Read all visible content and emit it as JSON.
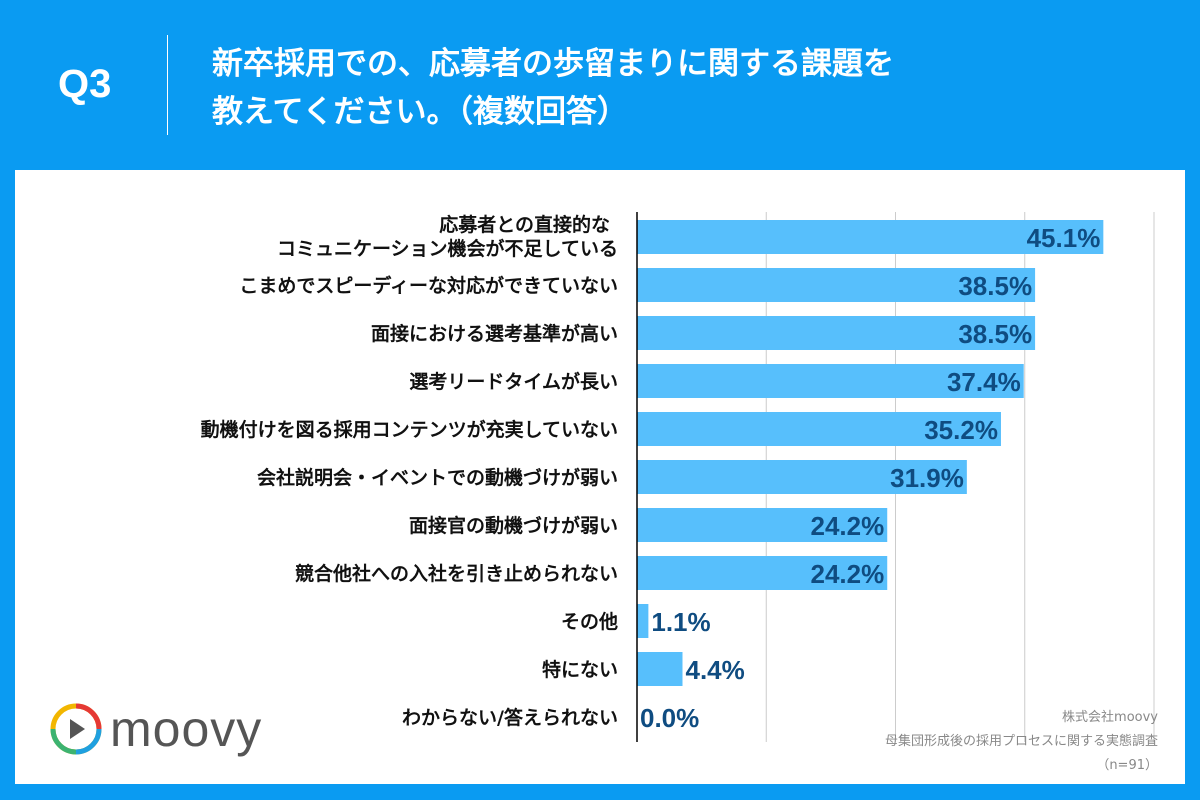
{
  "header": {
    "question_no": "Q3",
    "title_line1": "新卒採用での、応募者の歩留まりに関する課題を",
    "title_line2": "教えてください。（複数回答）"
  },
  "chart_data": {
    "type": "bar",
    "orientation": "horizontal",
    "categories": [
      [
        "応募者との直接的な",
        "コミュニケーション機会が不足している"
      ],
      [
        "こまめでスピーディーな対応ができていない"
      ],
      [
        "面接における選考基準が高い"
      ],
      [
        "選考リードタイムが長い"
      ],
      [
        "動機付けを図る採用コンテンツが充実していない"
      ],
      [
        "会社説明会・イベントでの動機づけが弱い"
      ],
      [
        "面接官の動機づけが弱い"
      ],
      [
        "競合他社への入社を引き止められない"
      ],
      [
        "その他"
      ],
      [
        "特にない"
      ],
      [
        "わからない/答えられない"
      ]
    ],
    "values": [
      45.1,
      38.5,
      38.5,
      37.4,
      35.2,
      31.9,
      24.2,
      24.2,
      1.1,
      4.4,
      0.0
    ],
    "value_labels": [
      "45.1%",
      "38.5%",
      "38.5%",
      "37.4%",
      "35.2%",
      "31.9%",
      "24.2%",
      "24.2%",
      "1.1%",
      "4.4%",
      "0.0%"
    ],
    "xlim": [
      0,
      50
    ],
    "grid_x": [
      12.5,
      25,
      37.5,
      50
    ],
    "grid": true,
    "colors": {
      "bar": "#57bffc",
      "value_text": "#0f4c81",
      "grid": "#cccccc",
      "axis": "#000000"
    }
  },
  "logo": {
    "text": "moovy"
  },
  "source": {
    "company": "株式会社moovy",
    "survey": "母集団形成後の採用プロセスに関する実態調査",
    "sample": "（n=91）"
  },
  "colors": {
    "background": "#0a9bf2",
    "panel": "#ffffff"
  }
}
